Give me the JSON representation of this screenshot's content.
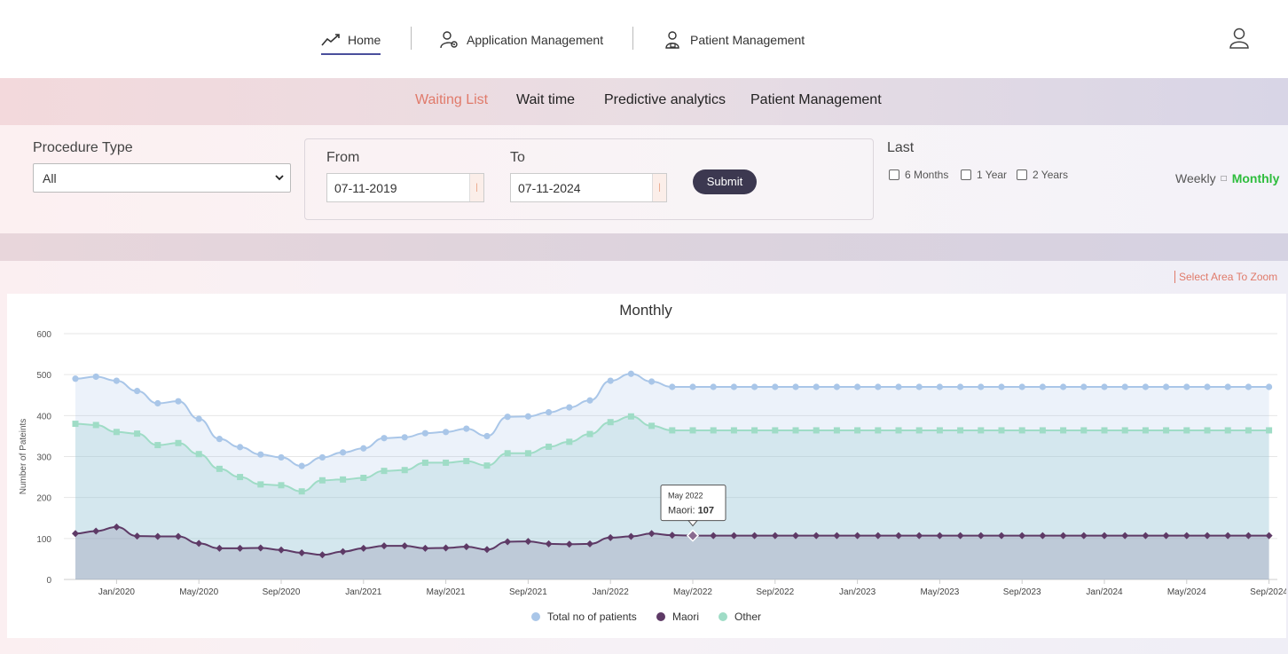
{
  "nav": {
    "home": "Home",
    "application_management": "Application Management",
    "patient_management": "Patient Management"
  },
  "subnav": {
    "tabs": [
      "Waiting List",
      "Wait time",
      "Predictive analytics",
      "Patient Management"
    ],
    "active_index": 0
  },
  "filters": {
    "procedure_type_label": "Procedure Type",
    "procedure_type_value": "All",
    "from_label": "From",
    "from_value": "07-11-2019",
    "to_label": "To",
    "to_value": "07-11-2024",
    "submit_label": "Submit",
    "last_label": "Last",
    "last_options": [
      "6 Months",
      "1 Year",
      "2 Years"
    ],
    "weekly_label": "Weekly",
    "monthly_label": "Monthly"
  },
  "zoom_hint": "Select Area To Zoom",
  "tooltip": {
    "title": "May 2022",
    "series": "Maori",
    "value": "107"
  },
  "colors": {
    "total": "#a9c6e8",
    "maori": "#5e3a66",
    "other": "#9fdcc6",
    "accent": "#e07a6a",
    "active_toggle": "#2ebd3d"
  },
  "chart_data": {
    "type": "area",
    "title": "Monthly",
    "ylabel": "Number of Pateints",
    "xlabel": "",
    "ylim": [
      0,
      600
    ],
    "yticks": [
      0,
      100,
      200,
      300,
      400,
      500,
      600
    ],
    "x_tick_labels": [
      "Jan/2020",
      "May/2020",
      "Sep/2020",
      "Jan/2021",
      "May/2021",
      "Sep/2021",
      "Jan/2022",
      "May/2022",
      "Sep/2022",
      "Jan/2023",
      "May/2023",
      "Sep/2023",
      "Jan/2024",
      "May/2024",
      "Sep/2024"
    ],
    "x_start": "Nov/2019",
    "x_end": "Sep/2024",
    "grid": true,
    "legend_position": "bottom",
    "series": [
      {
        "name": "Total no of patients",
        "values": [
          490,
          495,
          485,
          460,
          430,
          435,
          392,
          343,
          323,
          305,
          298,
          277,
          298,
          310,
          320,
          345,
          347,
          357,
          360,
          368,
          350,
          397,
          398,
          408,
          420,
          437,
          485,
          502,
          483,
          470,
          470,
          470,
          470,
          470,
          470,
          470,
          470,
          470,
          470,
          470,
          470,
          470,
          470,
          470,
          470,
          470,
          470,
          470,
          470,
          470,
          470,
          470,
          470,
          470,
          470,
          470,
          470,
          470,
          470
        ]
      },
      {
        "name": "Maori",
        "values": [
          112,
          118,
          128,
          106,
          105,
          105,
          88,
          76,
          76,
          77,
          72,
          65,
          60,
          68,
          76,
          82,
          82,
          76,
          77,
          80,
          73,
          92,
          93,
          87,
          86,
          87,
          102,
          105,
          112,
          108,
          107,
          107,
          107,
          107,
          107,
          107,
          107,
          107,
          107,
          107,
          107,
          107,
          107,
          107,
          107,
          107,
          107,
          107,
          107,
          107,
          107,
          107,
          107,
          107,
          107,
          107,
          107,
          107,
          107
        ]
      },
      {
        "name": "Other",
        "values": [
          380,
          377,
          360,
          356,
          328,
          333,
          306,
          270,
          250,
          232,
          230,
          215,
          242,
          244,
          248,
          265,
          267,
          285,
          285,
          289,
          278,
          308,
          308,
          324,
          336,
          355,
          384,
          398,
          375,
          364,
          364,
          364,
          364,
          364,
          364,
          364,
          364,
          364,
          364,
          364,
          364,
          364,
          364,
          364,
          364,
          364,
          364,
          364,
          364,
          364,
          364,
          364,
          364,
          364,
          364,
          364,
          364,
          364,
          364
        ]
      }
    ]
  }
}
